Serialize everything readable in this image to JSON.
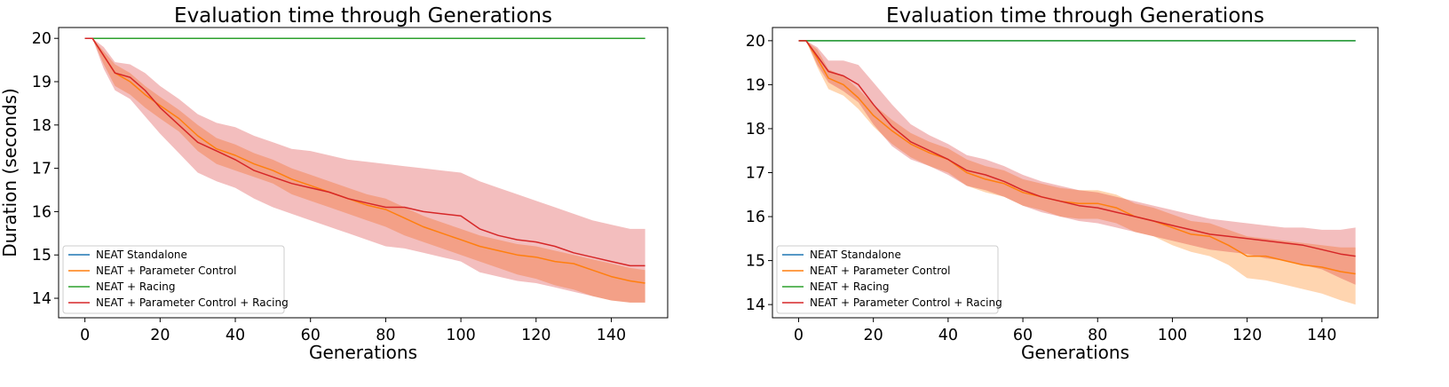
{
  "chart_data": [
    {
      "type": "line",
      "title": "Evaluation time through Generations",
      "xlabel": "Generations",
      "ylabel": "Duration (seconds)",
      "xlim": [
        -7,
        155
      ],
      "ylim": [
        13.55,
        20.25
      ],
      "xticks": [
        0,
        20,
        40,
        60,
        80,
        100,
        120,
        140
      ],
      "yticks": [
        14,
        15,
        16,
        17,
        18,
        19,
        20
      ],
      "grid": false,
      "legend_position": "bottom-left",
      "series": [
        {
          "name": "NEAT Standalone",
          "color": "#1f77b4",
          "x": [
            0,
            149
          ],
          "y": [
            20.0,
            20.0
          ]
        },
        {
          "name": "NEAT + Parameter Control",
          "color": "#ff7f0e",
          "x": [
            0,
            2,
            5,
            8,
            12,
            16,
            20,
            25,
            30,
            35,
            40,
            45,
            50,
            55,
            60,
            65,
            70,
            75,
            80,
            85,
            90,
            95,
            100,
            105,
            110,
            115,
            120,
            125,
            130,
            135,
            140,
            145,
            149
          ],
          "y": [
            20.0,
            20.0,
            19.6,
            19.2,
            19.0,
            18.7,
            18.45,
            18.15,
            17.75,
            17.45,
            17.3,
            17.1,
            16.95,
            16.75,
            16.6,
            16.45,
            16.3,
            16.15,
            16.05,
            15.85,
            15.65,
            15.5,
            15.35,
            15.2,
            15.1,
            15.0,
            14.95,
            14.85,
            14.8,
            14.65,
            14.5,
            14.4,
            14.35
          ],
          "band_upper": [
            20.0,
            20.0,
            19.7,
            19.4,
            19.2,
            18.9,
            18.65,
            18.35,
            18.0,
            17.7,
            17.55,
            17.35,
            17.2,
            17.0,
            16.85,
            16.7,
            16.55,
            16.4,
            16.3,
            16.1,
            15.9,
            15.75,
            15.6,
            15.45,
            15.35,
            15.25,
            15.2,
            15.1,
            15.0,
            14.9,
            14.8,
            14.7,
            14.65
          ],
          "band_lower": [
            20.0,
            20.0,
            19.4,
            18.9,
            18.7,
            18.4,
            18.15,
            17.85,
            17.4,
            17.1,
            16.95,
            16.8,
            16.65,
            16.4,
            16.25,
            16.1,
            15.95,
            15.8,
            15.65,
            15.45,
            15.3,
            15.15,
            15.0,
            14.85,
            14.7,
            14.55,
            14.45,
            14.3,
            14.2,
            14.05,
            13.95,
            13.9,
            13.9
          ]
        },
        {
          "name": "NEAT + Racing",
          "color": "#2ca02c",
          "x": [
            0,
            149
          ],
          "y": [
            20.0,
            20.0
          ]
        },
        {
          "name": "NEAT + Parameter Control + Racing",
          "color": "#d62728",
          "x": [
            0,
            2,
            5,
            8,
            12,
            16,
            20,
            25,
            30,
            35,
            40,
            45,
            50,
            55,
            60,
            65,
            70,
            75,
            80,
            85,
            90,
            95,
            100,
            105,
            110,
            115,
            120,
            125,
            130,
            135,
            140,
            145,
            149
          ],
          "y": [
            20.0,
            20.0,
            19.6,
            19.2,
            19.1,
            18.8,
            18.4,
            18.0,
            17.6,
            17.4,
            17.2,
            16.95,
            16.8,
            16.65,
            16.55,
            16.45,
            16.3,
            16.2,
            16.1,
            16.1,
            16.0,
            15.95,
            15.9,
            15.6,
            15.45,
            15.35,
            15.3,
            15.2,
            15.05,
            14.95,
            14.85,
            14.75,
            14.75
          ],
          "band_upper": [
            20.0,
            20.0,
            19.8,
            19.45,
            19.4,
            19.2,
            18.9,
            18.6,
            18.25,
            18.05,
            17.95,
            17.75,
            17.6,
            17.45,
            17.4,
            17.3,
            17.2,
            17.15,
            17.1,
            17.05,
            17.0,
            16.95,
            16.9,
            16.7,
            16.55,
            16.4,
            16.25,
            16.1,
            15.95,
            15.8,
            15.7,
            15.6,
            15.6
          ],
          "band_lower": [
            20.0,
            20.0,
            19.3,
            18.8,
            18.6,
            18.2,
            17.8,
            17.35,
            16.9,
            16.7,
            16.55,
            16.3,
            16.1,
            15.95,
            15.8,
            15.65,
            15.5,
            15.35,
            15.2,
            15.15,
            15.05,
            14.95,
            14.85,
            14.6,
            14.5,
            14.4,
            14.35,
            14.25,
            14.15,
            14.05,
            13.95,
            13.9,
            13.9
          ]
        }
      ]
    },
    {
      "type": "line",
      "title": "Evaluation time through Generations",
      "xlabel": "Generations",
      "ylabel": "Duration (seconds)",
      "xlim": [
        -7,
        155
      ],
      "ylim": [
        13.7,
        20.3
      ],
      "xticks": [
        0,
        20,
        40,
        60,
        80,
        100,
        120,
        140
      ],
      "yticks": [
        14,
        15,
        16,
        17,
        18,
        19,
        20
      ],
      "grid": false,
      "legend_position": "bottom-left",
      "series": [
        {
          "name": "NEAT Standalone",
          "color": "#1f77b4",
          "x": [
            0,
            149
          ],
          "y": [
            20.0,
            20.0
          ]
        },
        {
          "name": "NEAT + Parameter Control",
          "color": "#ff7f0e",
          "x": [
            0,
            2,
            5,
            8,
            12,
            16,
            20,
            25,
            30,
            35,
            40,
            45,
            50,
            55,
            60,
            65,
            70,
            75,
            80,
            85,
            90,
            95,
            100,
            105,
            110,
            115,
            120,
            125,
            130,
            135,
            140,
            145,
            149
          ],
          "y": [
            20.0,
            20.0,
            19.6,
            19.15,
            19.0,
            18.7,
            18.3,
            17.95,
            17.65,
            17.45,
            17.3,
            17.0,
            16.85,
            16.75,
            16.55,
            16.45,
            16.35,
            16.3,
            16.3,
            16.2,
            16.0,
            15.9,
            15.75,
            15.6,
            15.55,
            15.35,
            15.1,
            15.1,
            15.0,
            14.9,
            14.85,
            14.75,
            14.7
          ],
          "band_upper": [
            20.0,
            20.0,
            19.8,
            19.35,
            19.2,
            18.9,
            18.55,
            18.2,
            17.9,
            17.7,
            17.55,
            17.3,
            17.15,
            17.05,
            16.85,
            16.75,
            16.65,
            16.6,
            16.6,
            16.5,
            16.3,
            16.2,
            16.05,
            15.9,
            15.85,
            15.7,
            15.55,
            15.5,
            15.45,
            15.4,
            15.35,
            15.3,
            15.3
          ],
          "band_lower": [
            20.0,
            20.0,
            19.4,
            18.9,
            18.75,
            18.45,
            18.05,
            17.65,
            17.35,
            17.15,
            17.0,
            16.7,
            16.55,
            16.45,
            16.25,
            16.15,
            16.0,
            15.95,
            15.95,
            15.85,
            15.65,
            15.55,
            15.35,
            15.2,
            15.1,
            14.9,
            14.6,
            14.55,
            14.45,
            14.35,
            14.25,
            14.1,
            14.0
          ]
        },
        {
          "name": "NEAT + Racing",
          "color": "#2ca02c",
          "x": [
            0,
            149
          ],
          "y": [
            20.0,
            20.0
          ]
        },
        {
          "name": "NEAT + Parameter Control + Racing",
          "color": "#d62728",
          "x": [
            0,
            2,
            5,
            8,
            12,
            16,
            20,
            25,
            30,
            35,
            40,
            45,
            50,
            55,
            60,
            65,
            70,
            75,
            80,
            85,
            90,
            95,
            100,
            105,
            110,
            115,
            120,
            125,
            130,
            135,
            140,
            145,
            149
          ],
          "y": [
            20.0,
            20.0,
            19.65,
            19.3,
            19.2,
            19.0,
            18.55,
            18.05,
            17.7,
            17.5,
            17.3,
            17.05,
            16.95,
            16.8,
            16.6,
            16.45,
            16.35,
            16.25,
            16.2,
            16.1,
            16.0,
            15.9,
            15.8,
            15.7,
            15.6,
            15.55,
            15.5,
            15.45,
            15.4,
            15.35,
            15.25,
            15.15,
            15.1
          ],
          "band_upper": [
            20.0,
            20.0,
            19.85,
            19.55,
            19.55,
            19.45,
            19.05,
            18.55,
            18.1,
            17.85,
            17.65,
            17.4,
            17.3,
            17.15,
            16.95,
            16.8,
            16.7,
            16.6,
            16.55,
            16.45,
            16.35,
            16.25,
            16.15,
            16.05,
            15.95,
            15.9,
            15.85,
            15.8,
            15.75,
            15.75,
            15.7,
            15.7,
            15.75
          ],
          "band_lower": [
            20.0,
            20.0,
            19.45,
            19.05,
            18.85,
            18.6,
            18.1,
            17.6,
            17.3,
            17.15,
            16.95,
            16.7,
            16.6,
            16.45,
            16.25,
            16.1,
            16.0,
            15.9,
            15.85,
            15.75,
            15.65,
            15.55,
            15.45,
            15.35,
            15.25,
            15.2,
            15.15,
            15.05,
            15.0,
            14.9,
            14.8,
            14.6,
            14.45
          ]
        }
      ]
    }
  ]
}
